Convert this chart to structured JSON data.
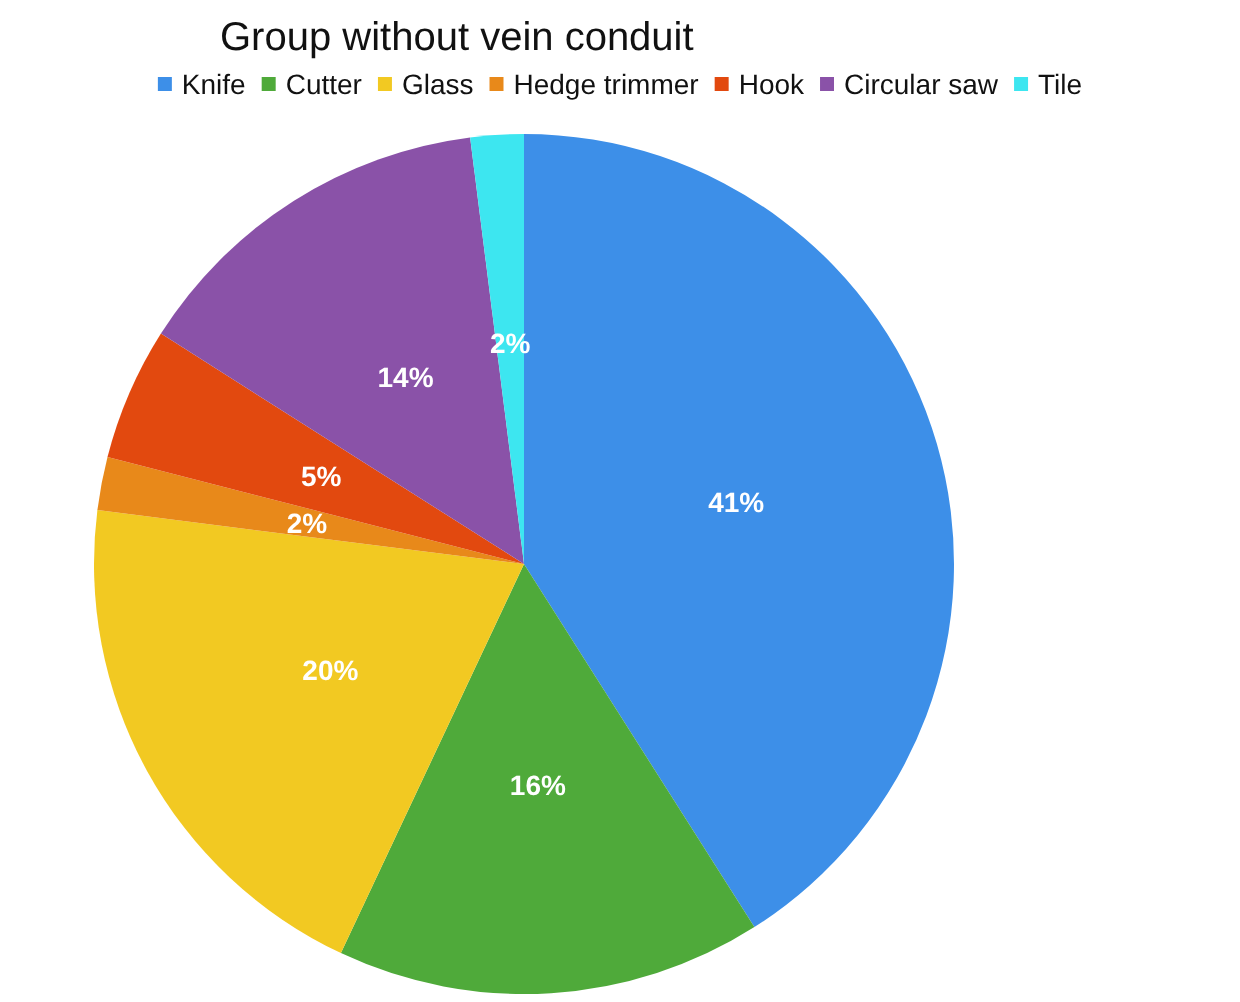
{
  "chart_data": {
    "type": "pie",
    "title": "Group without vein conduit",
    "categories": [
      "Knife",
      "Cutter",
      "Glass",
      "Hedge trimmer",
      "Hook",
      "Circular saw",
      "Tile"
    ],
    "values": [
      41,
      16,
      20,
      2,
      5,
      14,
      2
    ],
    "value_labels": [
      "41%",
      "16%",
      "20%",
      "2%",
      "5%",
      "14%",
      "2%"
    ],
    "colors": [
      "#3d8fe8",
      "#4faa3a",
      "#f2c922",
      "#e8891a",
      "#e2490f",
      "#8a52a8",
      "#3de6f0"
    ],
    "legend": "top"
  }
}
